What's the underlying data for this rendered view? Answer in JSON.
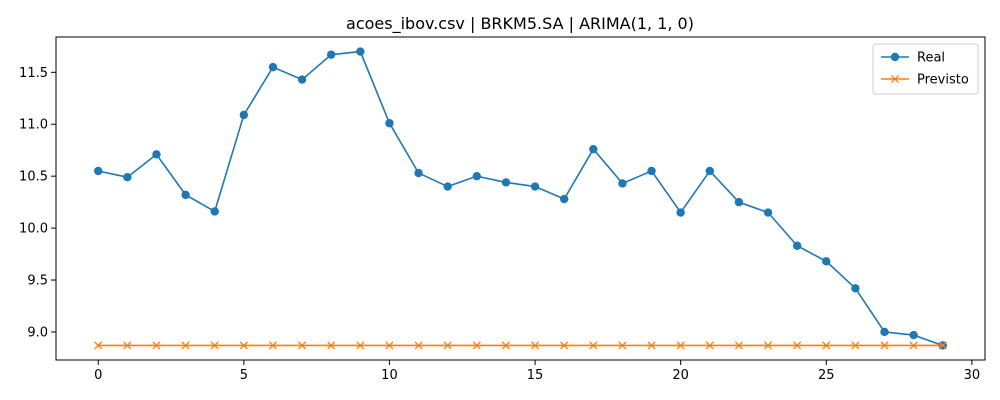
{
  "chart_data": {
    "type": "line",
    "title": "acoes_ibov.csv | BRKM5.SA | ARIMA(1, 1, 0)",
    "xlabel": "",
    "ylabel": "",
    "xlim": [
      -1.45,
      30.45
    ],
    "ylim": [
      8.73,
      11.84
    ],
    "x_ticks": [
      0,
      5,
      10,
      15,
      20,
      25,
      30
    ],
    "x_tick_labels": [
      "0",
      "5",
      "10",
      "15",
      "20",
      "25",
      "30"
    ],
    "y_ticks": [
      9.0,
      9.5,
      10.0,
      10.5,
      11.0,
      11.5
    ],
    "y_tick_labels": [
      "9.0",
      "9.5",
      "10.0",
      "10.5",
      "11.0",
      "11.5"
    ],
    "grid": false,
    "legend_position": "top-right",
    "x": [
      0,
      1,
      2,
      3,
      4,
      5,
      6,
      7,
      8,
      9,
      10,
      11,
      12,
      13,
      14,
      15,
      16,
      17,
      18,
      19,
      20,
      21,
      22,
      23,
      24,
      25,
      26,
      27,
      28,
      29
    ],
    "series": [
      {
        "name": "Real",
        "color": "#1f77b4",
        "marker": "circle",
        "values": [
          10.55,
          10.49,
          10.71,
          10.32,
          10.16,
          11.09,
          11.55,
          11.43,
          11.67,
          11.7,
          11.01,
          10.53,
          10.4,
          10.5,
          10.44,
          10.4,
          10.28,
          10.76,
          10.43,
          10.55,
          10.15,
          10.55,
          10.25,
          10.15,
          9.83,
          9.68,
          9.42,
          9.0,
          8.97,
          8.87
        ]
      },
      {
        "name": "Previsto",
        "color": "#ff7f0e",
        "marker": "x",
        "values": [
          8.87,
          8.87,
          8.87,
          8.87,
          8.87,
          8.87,
          8.87,
          8.87,
          8.87,
          8.87,
          8.87,
          8.87,
          8.87,
          8.87,
          8.87,
          8.87,
          8.87,
          8.87,
          8.87,
          8.87,
          8.87,
          8.87,
          8.87,
          8.87,
          8.87,
          8.87,
          8.87,
          8.87,
          8.87,
          8.87
        ]
      }
    ]
  }
}
